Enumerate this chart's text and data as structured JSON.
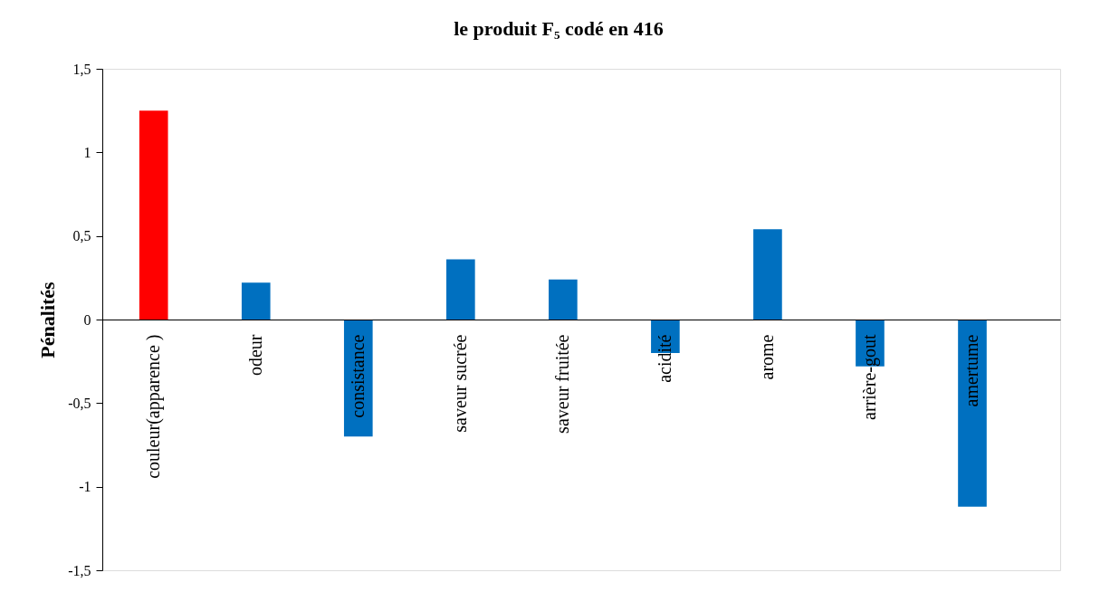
{
  "chart_data": {
    "type": "bar",
    "title": "le produit F₅ codé en 416",
    "ylabel": "Pénalités",
    "categories": [
      "couleur(apparence )",
      "odeur",
      "consistance",
      "saveur sucrée",
      "saveur fruitée",
      "acidité",
      "arome",
      "arrière-gout",
      "amertume"
    ],
    "values": [
      1.25,
      0.22,
      -0.7,
      0.36,
      0.24,
      -0.2,
      0.54,
      -0.28,
      -1.12
    ],
    "colors": [
      "#ff0000",
      "#0070c0",
      "#0070c0",
      "#0070c0",
      "#0070c0",
      "#0070c0",
      "#0070c0",
      "#0070c0",
      "#0070c0"
    ],
    "ylim": [
      -1.5,
      1.5
    ],
    "yticks": [
      {
        "value": -1.5,
        "label": "-1,5"
      },
      -1,
      {
        "value": -0.5,
        "label": "-0,5"
      },
      0,
      {
        "value": 0.5,
        "label": "0,5"
      },
      1,
      {
        "value": 1.5,
        "label": "1,5"
      }
    ]
  }
}
